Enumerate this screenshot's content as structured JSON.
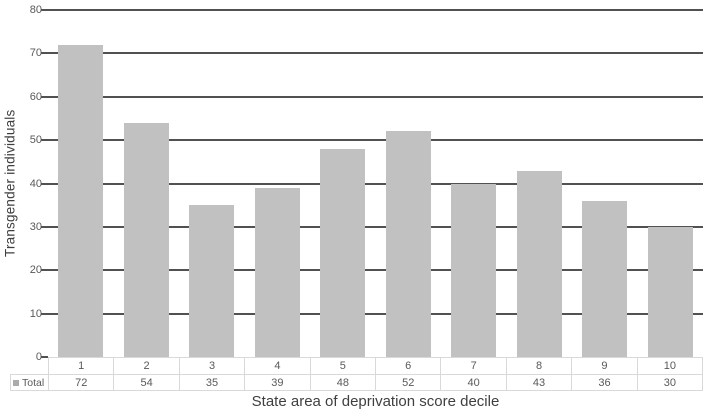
{
  "chart_data": {
    "type": "bar",
    "title": "",
    "categories": [
      "1",
      "2",
      "3",
      "4",
      "5",
      "6",
      "7",
      "8",
      "9",
      "10"
    ],
    "series": [
      {
        "name": "Total",
        "values": [
          72,
          54,
          35,
          39,
          48,
          52,
          40,
          43,
          36,
          30
        ]
      }
    ],
    "xlabel": "State area of deprivation score decile",
    "ylabel": "Transgender individuals",
    "ylim": [
      0,
      80
    ],
    "yticks": [
      0,
      10,
      20,
      30,
      40,
      50,
      60,
      70,
      80
    ],
    "grid": "horizontal-major",
    "legend_position": "data-table-left",
    "colors": {
      "bar": "#c1c1c1",
      "gridline": "#515151",
      "tick_label": "#595959",
      "axis_title": "#3f3f3f",
      "table_border": "#d9d9d9",
      "table_text": "#595959",
      "legend_swatch": "#ababab",
      "background": "#ffffff"
    }
  }
}
